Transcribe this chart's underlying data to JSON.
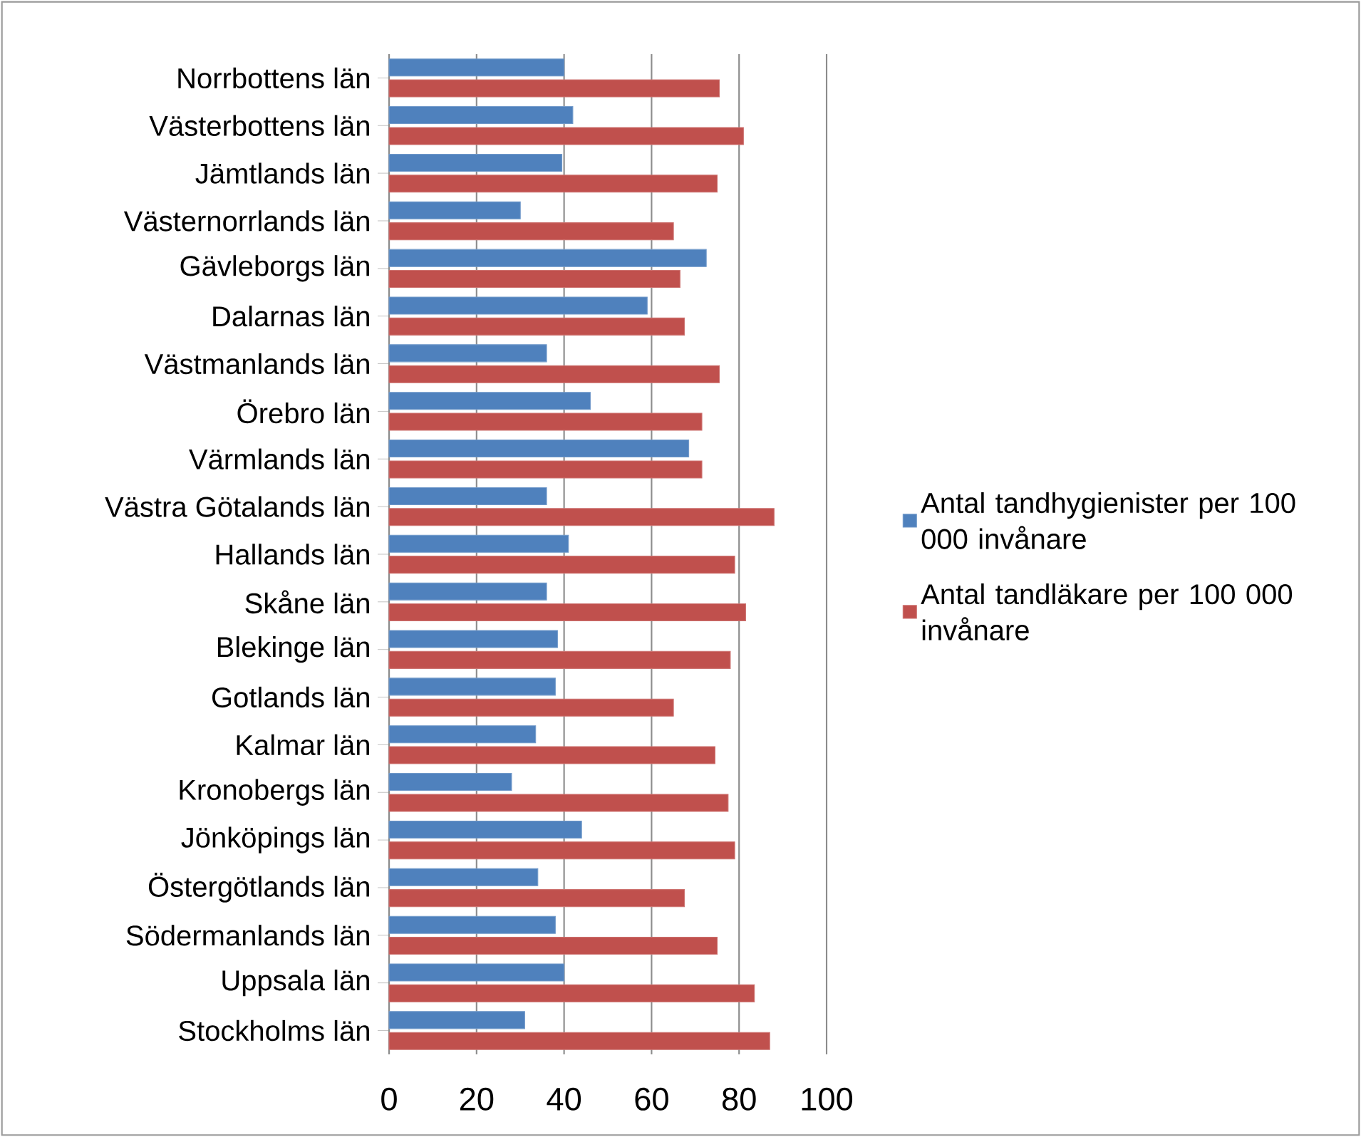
{
  "chart_data": {
    "type": "bar",
    "orientation": "horizontal",
    "categories": [
      "Norrbottens län",
      "Västerbottens län",
      "Jämtlands län",
      "Västernorrlands län",
      "Gävleborgs län",
      "Dalarnas län",
      "Västmanlands län",
      "Örebro län",
      "Värmlands län",
      "Västra Götalands län",
      "Hallands län",
      "Skåne län",
      "Blekinge län",
      "Gotlands län",
      "Kalmar län",
      "Kronobergs län",
      "Jönköpings län",
      "Östergötlands län",
      "Södermanlands län",
      "Uppsala län",
      "Stockholms län"
    ],
    "series": [
      {
        "name": "Antal tandhygienister per 100 000 invånare",
        "color": "#4f81bd",
        "values": [
          40,
          42,
          39.5,
          30,
          72.5,
          59,
          36,
          46,
          68.5,
          36,
          41,
          36,
          38.5,
          38,
          33.5,
          28,
          44,
          34,
          38,
          40,
          31
        ]
      },
      {
        "name": "Antal tandläkare per 100 000 invånare",
        "color": "#c0504d",
        "values": [
          75.5,
          81,
          75,
          65,
          66.5,
          67.5,
          75.5,
          71.5,
          71.5,
          88,
          79,
          81.5,
          78,
          65,
          74.5,
          77.5,
          79,
          67.5,
          75,
          83.5,
          87
        ]
      }
    ],
    "xlim": [
      0,
      100
    ],
    "xticks": [
      0,
      20,
      40,
      60,
      80,
      100
    ],
    "grid": "x",
    "legend": "right"
  }
}
